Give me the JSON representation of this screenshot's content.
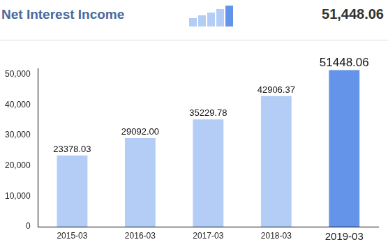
{
  "header": {
    "value": "51,448.06"
  },
  "chart_data": {
    "type": "bar",
    "title": "Net Interest Income",
    "categories": [
      "2015-03",
      "2016-03",
      "2017-03",
      "2018-03",
      "2019-03"
    ],
    "values": [
      23378.03,
      29092.0,
      35229.78,
      42906.37,
      51448.06
    ],
    "value_labels": [
      "23378.03",
      "29092.00",
      "35229.78",
      "42906.37",
      "51448.06"
    ],
    "colors": [
      "#b3cdf6",
      "#b3cdf6",
      "#b3cdf6",
      "#b3cdf6",
      "#6494ea"
    ],
    "ylim": [
      0,
      52000
    ],
    "yticks": [
      {
        "value": 0,
        "label": "0"
      },
      {
        "value": 10000,
        "label": "10,000"
      },
      {
        "value": 20000,
        "label": "20,000"
      },
      {
        "value": 30000,
        "label": "30,000"
      },
      {
        "value": 40000,
        "label": "40,000"
      },
      {
        "value": 50000,
        "label": "50,000"
      }
    ],
    "grid": false,
    "data_labels": true
  }
}
